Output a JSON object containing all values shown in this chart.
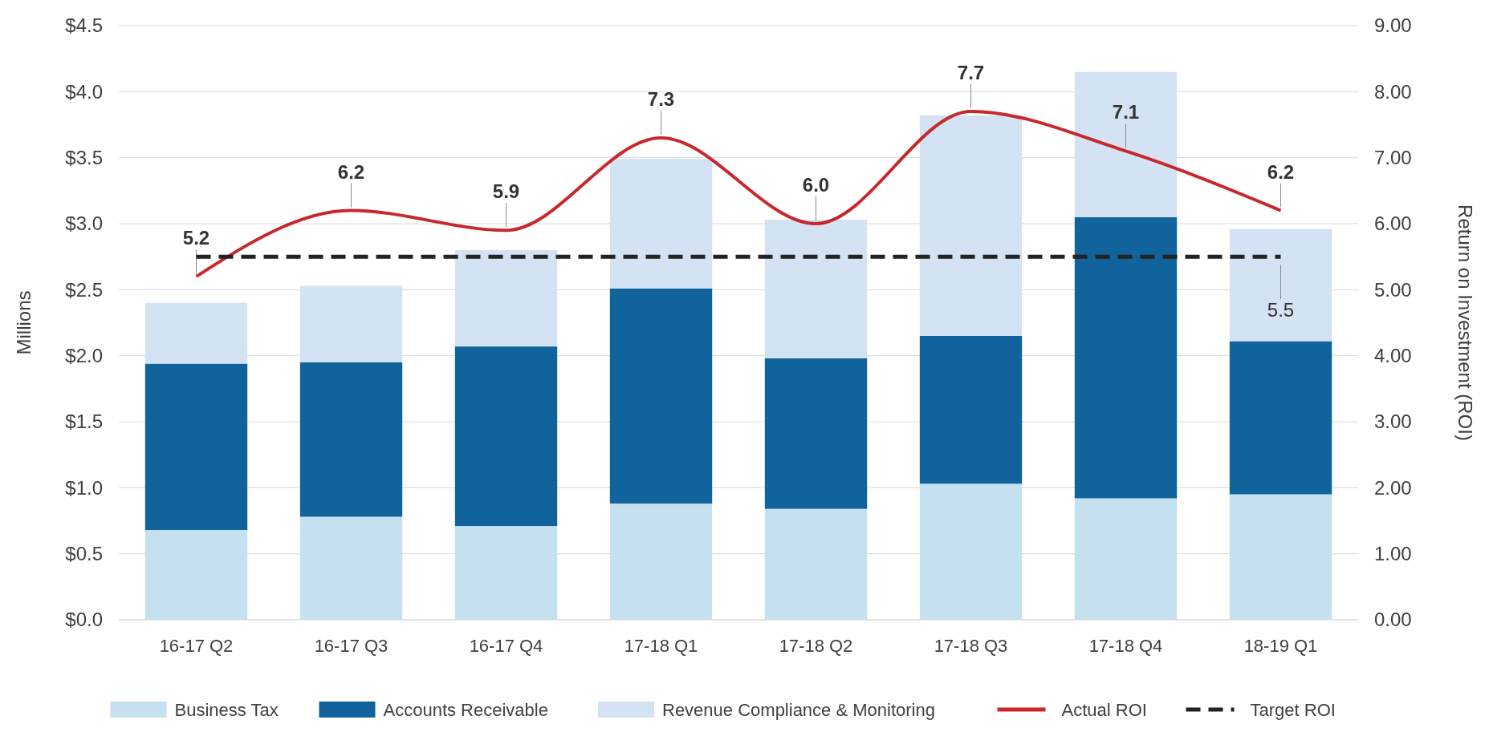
{
  "chart_data": {
    "type": "bar",
    "stacked": true,
    "categories": [
      "16-17 Q2",
      "16-17 Q3",
      "16-17 Q4",
      "17-18 Q1",
      "17-18 Q2",
      "17-18 Q3",
      "17-18 Q4",
      "18-19 Q1"
    ],
    "ylabel": "Millions",
    "y2label": "Return on Investment (ROI)",
    "ylim": [
      0,
      4.5
    ],
    "yticks": [
      {
        "value": 0,
        "label": "$0.0"
      },
      {
        "value": 0.5,
        "label": "$0.5"
      },
      {
        "value": 1,
        "label": "$1.0"
      },
      {
        "value": 1.5,
        "label": "$1.5"
      },
      {
        "value": 2,
        "label": "$2.0"
      },
      {
        "value": 2.5,
        "label": "$2.5"
      },
      {
        "value": 3,
        "label": "$3.0"
      },
      {
        "value": 3.5,
        "label": "$3.5"
      },
      {
        "value": 4,
        "label": "$4.0"
      },
      {
        "value": 4.5,
        "label": "$4.5"
      }
    ],
    "y2lim": [
      0,
      9
    ],
    "y2ticks": [
      {
        "value": 0,
        "label": "0.00"
      },
      {
        "value": 1,
        "label": "1.00"
      },
      {
        "value": 2,
        "label": "2.00"
      },
      {
        "value": 3,
        "label": "3.00"
      },
      {
        "value": 4,
        "label": "4.00"
      },
      {
        "value": 5,
        "label": "5.00"
      },
      {
        "value": 6,
        "label": "6.00"
      },
      {
        "value": 7,
        "label": "7.00"
      },
      {
        "value": 8,
        "label": "8.00"
      },
      {
        "value": 9,
        "label": "9.00"
      }
    ],
    "grid": "y",
    "legend": "bottom",
    "series": [
      {
        "name": "Business Tax",
        "color": "#c5e0ee",
        "values": [
          0.68,
          0.78,
          0.71,
          0.88,
          0.84,
          1.03,
          0.92,
          0.95
        ]
      },
      {
        "name": "Accounts Receivable",
        "color": "#11649b",
        "values": [
          1.26,
          1.17,
          1.36,
          1.63,
          1.14,
          1.12,
          2.13,
          1.16
        ]
      },
      {
        "name": "Revenue Compliance & Monitoring",
        "color": "#d3e3f3",
        "values": [
          0.46,
          0.58,
          0.73,
          0.98,
          1.05,
          1.67,
          1.1,
          0.85
        ]
      },
      {
        "name": "Actual ROI",
        "type": "line",
        "axis": "y2",
        "color": "#c8282c",
        "line_style": "solid",
        "values": [
          5.2,
          6.2,
          5.9,
          7.3,
          6.0,
          7.7,
          7.1,
          6.2
        ],
        "value_labels": [
          "5.2",
          "6.2",
          "5.9",
          "7.3",
          "6.0",
          "7.7",
          "7.1",
          "6.2"
        ]
      },
      {
        "name": "Target ROI",
        "type": "line",
        "axis": "y2",
        "color": "#222222",
        "line_style": "dashed",
        "values": [
          5.5,
          5.5,
          5.5,
          5.5,
          5.5,
          5.5,
          5.5,
          5.5
        ],
        "value_labels": [
          null,
          null,
          null,
          null,
          null,
          null,
          null,
          "5.5"
        ]
      }
    ]
  }
}
